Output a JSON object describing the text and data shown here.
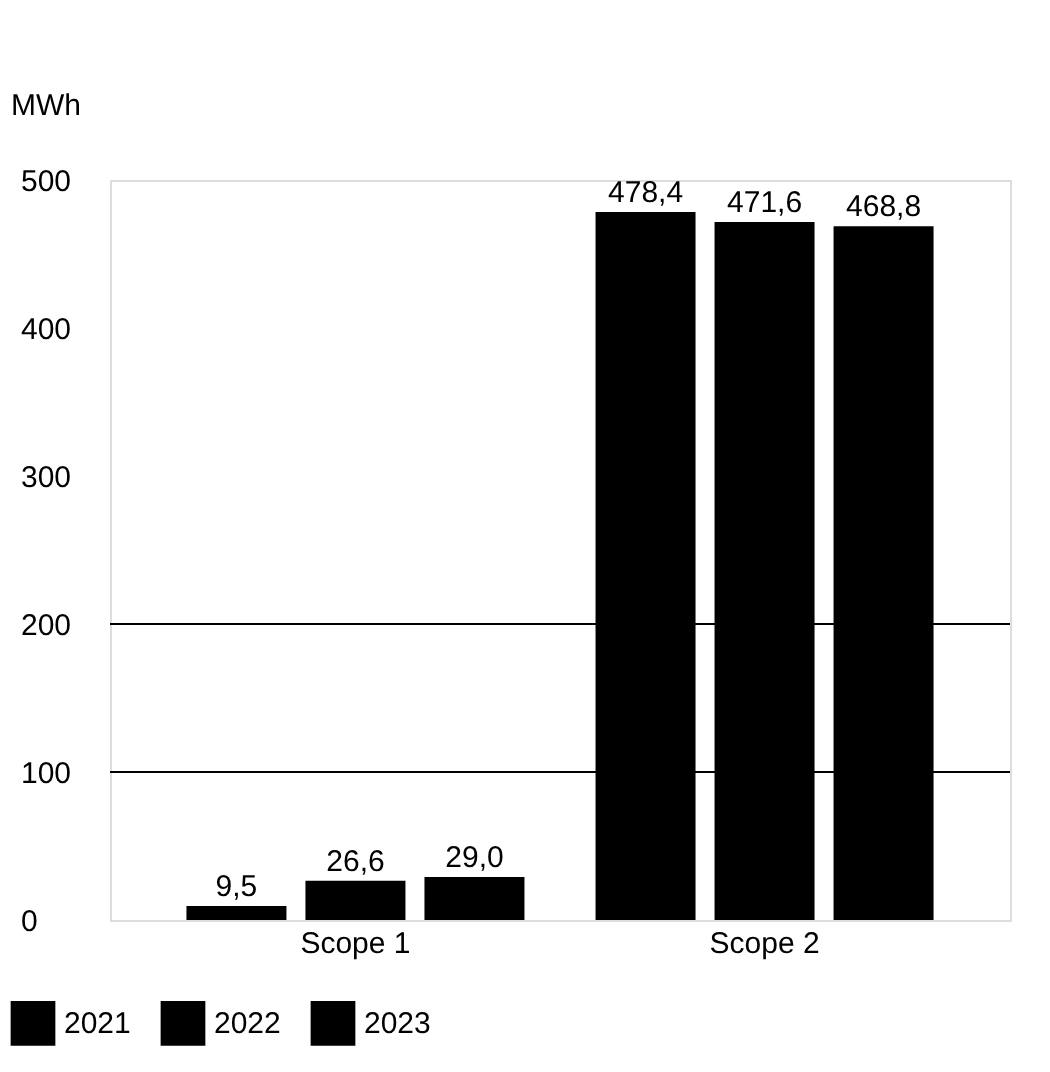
{
  "chart_data": {
    "type": "bar",
    "ylabel": "MWh",
    "categories": [
      "Scope 1",
      "Scope 2"
    ],
    "series": [
      {
        "name": "2021",
        "color": "#000000",
        "values": [
          9.5,
          478.4
        ],
        "value_labels": [
          "9,5",
          "478,4"
        ]
      },
      {
        "name": "2022",
        "color": "#000000",
        "values": [
          26.6,
          471.6
        ],
        "value_labels": [
          "26,6",
          "471,6"
        ]
      },
      {
        "name": "2023",
        "color": "#000000",
        "values": [
          29.0,
          468.8
        ],
        "value_labels": [
          "29,0",
          "468,8"
        ]
      }
    ],
    "ylim": [
      0,
      500
    ],
    "yticks": [
      0,
      100,
      200,
      300,
      400,
      500
    ],
    "grid": false,
    "ref_lines": [
      {
        "axis": "y",
        "value": 100,
        "color": "#000000"
      },
      {
        "axis": "y",
        "value": 200,
        "color": "#000000"
      }
    ],
    "legend": "bottom left"
  }
}
